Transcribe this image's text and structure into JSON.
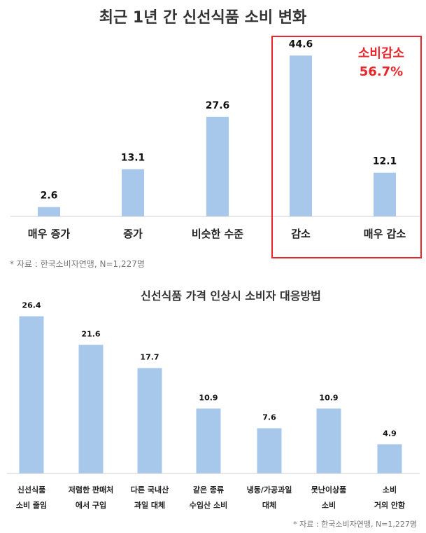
{
  "chart_data": [
    {
      "type": "bar",
      "title": "최근 1년 간 신선식품 소비 변화",
      "categories": [
        "매우 증가",
        "증가",
        "비슷한 수준",
        "감소",
        "매우 감소"
      ],
      "values": [
        2.6,
        13.1,
        27.6,
        44.6,
        12.1
      ],
      "value_labels": [
        "2.6",
        "13.1",
        "27.6",
        "44.6",
        "12.1"
      ],
      "ylim": [
        0,
        50
      ],
      "grid": false,
      "highlight": {
        "label": "소비감소",
        "value": "56.7%",
        "categories": [
          "감소",
          "매우 감소"
        ],
        "color": "#e8262b"
      },
      "source": "* 자료 : 한국소비자연맹, N=1,227명",
      "bar_color": "#a7c8eb"
    },
    {
      "type": "bar",
      "title": "신선식품 가격 인상시 소비자 대응방법",
      "categories": [
        [
          "신선식품",
          "소비 줄임"
        ],
        [
          "저렴한 판매처",
          "에서 구입"
        ],
        [
          "다른 국내산",
          "과일 대체"
        ],
        [
          "같은 종류",
          "수입산 소비"
        ],
        [
          "냉동/가공과일",
          "대체"
        ],
        [
          "못난이상품",
          "소비"
        ],
        [
          "소비",
          "거의 안함"
        ]
      ],
      "values": [
        26.4,
        21.6,
        17.7,
        10.9,
        7.6,
        10.9,
        4.9
      ],
      "value_labels": [
        "26.4",
        "21.6",
        "17.7",
        "10.9",
        "7.6",
        "10.9",
        "4.9"
      ],
      "ylim": [
        0,
        30
      ],
      "grid": false,
      "source": "* 자료 : 한국소비자연맹, N=1,227명",
      "bar_color": "#a7c8eb"
    }
  ]
}
